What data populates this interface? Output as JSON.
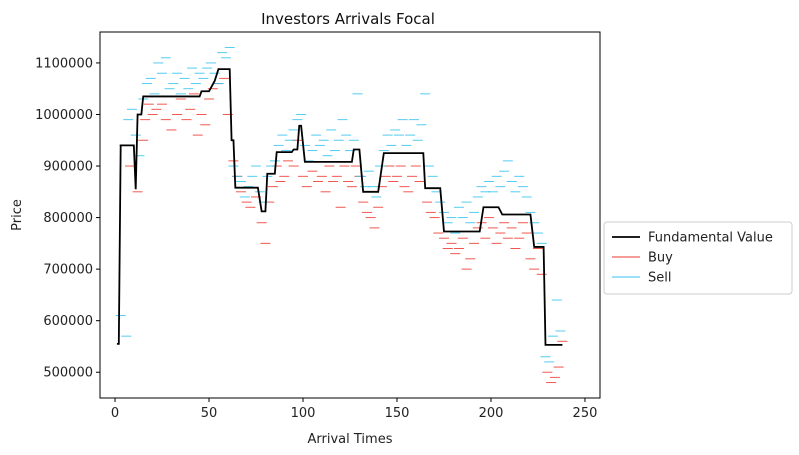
{
  "chart_data": {
    "type": "line",
    "title": "Investors Arrivals Focal",
    "xlabel": "Arrival Times",
    "ylabel": "Price",
    "xlim": [
      -8,
      258
    ],
    "ylim": [
      450000,
      1160000
    ],
    "xticks": [
      0,
      50,
      100,
      150,
      200,
      250
    ],
    "yticks": [
      500000,
      600000,
      700000,
      800000,
      900000,
      1000000,
      1100000
    ],
    "legend_position": "outside-right",
    "series": [
      {
        "name": "Fundamental Value",
        "kind": "step-line",
        "color": "#000000",
        "points": [
          [
            1,
            555000
          ],
          [
            2,
            555000
          ],
          [
            3,
            940000
          ],
          [
            10,
            940000
          ],
          [
            11,
            855000
          ],
          [
            12,
            1000000
          ],
          [
            14,
            1000000
          ],
          [
            15,
            1035000
          ],
          [
            20,
            1035000
          ],
          [
            22,
            1035000
          ],
          [
            45,
            1035000
          ],
          [
            46,
            1045000
          ],
          [
            50,
            1045000
          ],
          [
            53,
            1065000
          ],
          [
            55,
            1088000
          ],
          [
            61,
            1088000
          ],
          [
            62,
            950000
          ],
          [
            63,
            950000
          ],
          [
            64,
            858000
          ],
          [
            76,
            858000
          ],
          [
            78,
            812000
          ],
          [
            80,
            812000
          ],
          [
            81,
            885000
          ],
          [
            85,
            885000
          ],
          [
            86,
            927000
          ],
          [
            94,
            927000
          ],
          [
            95,
            932000
          ],
          [
            97,
            932000
          ],
          [
            98,
            978000
          ],
          [
            99,
            978000
          ],
          [
            101,
            908000
          ],
          [
            126,
            908000
          ],
          [
            127,
            932000
          ],
          [
            130,
            932000
          ],
          [
            132,
            850000
          ],
          [
            140,
            850000
          ],
          [
            143,
            925000
          ],
          [
            164,
            925000
          ],
          [
            165,
            857000
          ],
          [
            173,
            857000
          ],
          [
            175,
            773000
          ],
          [
            194,
            773000
          ],
          [
            196,
            820000
          ],
          [
            204,
            820000
          ],
          [
            206,
            806000
          ],
          [
            221,
            806000
          ],
          [
            223,
            743000
          ],
          [
            228,
            743000
          ],
          [
            229,
            553000
          ],
          [
            238,
            553000
          ]
        ]
      },
      {
        "name": "Buy",
        "kind": "short-dashes",
        "color": "#ee3a30",
        "points": [
          [
            5,
            940000
          ],
          [
            8,
            900000
          ],
          [
            12,
            850000
          ],
          [
            15,
            950000
          ],
          [
            16,
            990000
          ],
          [
            18,
            1020000
          ],
          [
            20,
            1000000
          ],
          [
            22,
            1010000
          ],
          [
            25,
            1020000
          ],
          [
            27,
            990000
          ],
          [
            30,
            970000
          ],
          [
            33,
            1000000
          ],
          [
            35,
            1030000
          ],
          [
            38,
            990000
          ],
          [
            40,
            1010000
          ],
          [
            42,
            1040000
          ],
          [
            44,
            960000
          ],
          [
            46,
            1000000
          ],
          [
            48,
            980000
          ],
          [
            50,
            1030000
          ],
          [
            52,
            1050000
          ],
          [
            55,
            1060000
          ],
          [
            58,
            1070000
          ],
          [
            60,
            1000000
          ],
          [
            63,
            910000
          ],
          [
            65,
            880000
          ],
          [
            67,
            850000
          ],
          [
            70,
            830000
          ],
          [
            72,
            820000
          ],
          [
            75,
            840000
          ],
          [
            78,
            790000
          ],
          [
            80,
            750000
          ],
          [
            82,
            830000
          ],
          [
            84,
            860000
          ],
          [
            86,
            900000
          ],
          [
            88,
            870000
          ],
          [
            90,
            880000
          ],
          [
            92,
            910000
          ],
          [
            95,
            900000
          ],
          [
            97,
            950000
          ],
          [
            100,
            880000
          ],
          [
            102,
            860000
          ],
          [
            105,
            890000
          ],
          [
            108,
            870000
          ],
          [
            110,
            880000
          ],
          [
            112,
            850000
          ],
          [
            114,
            900000
          ],
          [
            116,
            870000
          ],
          [
            118,
            880000
          ],
          [
            120,
            820000
          ],
          [
            122,
            900000
          ],
          [
            124,
            870000
          ],
          [
            126,
            860000
          ],
          [
            128,
            900000
          ],
          [
            130,
            880000
          ],
          [
            132,
            830000
          ],
          [
            134,
            810000
          ],
          [
            136,
            800000
          ],
          [
            138,
            780000
          ],
          [
            140,
            820000
          ],
          [
            142,
            860000
          ],
          [
            144,
            880000
          ],
          [
            146,
            900000
          ],
          [
            148,
            870000
          ],
          [
            150,
            880000
          ],
          [
            152,
            900000
          ],
          [
            154,
            860000
          ],
          [
            156,
            850000
          ],
          [
            158,
            880000
          ],
          [
            160,
            900000
          ],
          [
            162,
            870000
          ],
          [
            166,
            830000
          ],
          [
            168,
            810000
          ],
          [
            170,
            800000
          ],
          [
            172,
            770000
          ],
          [
            175,
            760000
          ],
          [
            177,
            740000
          ],
          [
            179,
            750000
          ],
          [
            181,
            730000
          ],
          [
            183,
            740000
          ],
          [
            185,
            760000
          ],
          [
            187,
            700000
          ],
          [
            189,
            720000
          ],
          [
            191,
            750000
          ],
          [
            193,
            780000
          ],
          [
            195,
            790000
          ],
          [
            197,
            760000
          ],
          [
            199,
            800000
          ],
          [
            201,
            780000
          ],
          [
            203,
            750000
          ],
          [
            205,
            770000
          ],
          [
            207,
            790000
          ],
          [
            209,
            760000
          ],
          [
            211,
            780000
          ],
          [
            213,
            740000
          ],
          [
            215,
            760000
          ],
          [
            217,
            790000
          ],
          [
            219,
            770000
          ],
          [
            221,
            720000
          ],
          [
            223,
            700000
          ],
          [
            225,
            740000
          ],
          [
            227,
            690000
          ],
          [
            230,
            500000
          ],
          [
            232,
            480000
          ],
          [
            234,
            490000
          ],
          [
            236,
            510000
          ],
          [
            238,
            560000
          ]
        ]
      },
      {
        "name": "Sell",
        "kind": "short-dashes",
        "color": "#35c3ef",
        "points": [
          [
            3,
            610000
          ],
          [
            6,
            570000
          ],
          [
            7,
            990000
          ],
          [
            9,
            1010000
          ],
          [
            11,
            960000
          ],
          [
            13,
            920000
          ],
          [
            15,
            1030000
          ],
          [
            17,
            1060000
          ],
          [
            19,
            1070000
          ],
          [
            21,
            1040000
          ],
          [
            23,
            1100000
          ],
          [
            25,
            1080000
          ],
          [
            27,
            1110000
          ],
          [
            29,
            1050000
          ],
          [
            31,
            1060000
          ],
          [
            33,
            1080000
          ],
          [
            35,
            1040000
          ],
          [
            37,
            1070000
          ],
          [
            39,
            1050000
          ],
          [
            41,
            1090000
          ],
          [
            43,
            1060000
          ],
          [
            45,
            1080000
          ],
          [
            47,
            1070000
          ],
          [
            49,
            1090000
          ],
          [
            51,
            1100000
          ],
          [
            53,
            1080000
          ],
          [
            55,
            1060000
          ],
          [
            57,
            1120000
          ],
          [
            59,
            1110000
          ],
          [
            61,
            1130000
          ],
          [
            63,
            900000
          ],
          [
            65,
            880000
          ],
          [
            67,
            870000
          ],
          [
            69,
            840000
          ],
          [
            71,
            860000
          ],
          [
            73,
            880000
          ],
          [
            75,
            900000
          ],
          [
            77,
            850000
          ],
          [
            79,
            830000
          ],
          [
            81,
            880000
          ],
          [
            83,
            900000
          ],
          [
            85,
            910000
          ],
          [
            87,
            940000
          ],
          [
            89,
            960000
          ],
          [
            91,
            930000
          ],
          [
            93,
            950000
          ],
          [
            95,
            970000
          ],
          [
            97,
            990000
          ],
          [
            99,
            1000000
          ],
          [
            101,
            940000
          ],
          [
            103,
            910000
          ],
          [
            105,
            930000
          ],
          [
            107,
            960000
          ],
          [
            109,
            940000
          ],
          [
            111,
            950000
          ],
          [
            113,
            920000
          ],
          [
            115,
            970000
          ],
          [
            117,
            930000
          ],
          [
            119,
            950000
          ],
          [
            121,
            990000
          ],
          [
            123,
            960000
          ],
          [
            125,
            930000
          ],
          [
            127,
            950000
          ],
          [
            129,
            1040000
          ],
          [
            131,
            880000
          ],
          [
            133,
            860000
          ],
          [
            135,
            890000
          ],
          [
            137,
            860000
          ],
          [
            139,
            840000
          ],
          [
            141,
            900000
          ],
          [
            143,
            930000
          ],
          [
            145,
            960000
          ],
          [
            147,
            940000
          ],
          [
            149,
            970000
          ],
          [
            151,
            960000
          ],
          [
            153,
            990000
          ],
          [
            155,
            940000
          ],
          [
            157,
            960000
          ],
          [
            159,
            990000
          ],
          [
            161,
            950000
          ],
          [
            163,
            980000
          ],
          [
            165,
            1040000
          ],
          [
            167,
            900000
          ],
          [
            169,
            880000
          ],
          [
            171,
            850000
          ],
          [
            173,
            830000
          ],
          [
            175,
            810000
          ],
          [
            177,
            790000
          ],
          [
            179,
            800000
          ],
          [
            181,
            770000
          ],
          [
            183,
            820000
          ],
          [
            185,
            800000
          ],
          [
            187,
            830000
          ],
          [
            189,
            790000
          ],
          [
            191,
            810000
          ],
          [
            193,
            840000
          ],
          [
            195,
            860000
          ],
          [
            197,
            850000
          ],
          [
            199,
            870000
          ],
          [
            201,
            850000
          ],
          [
            203,
            880000
          ],
          [
            205,
            860000
          ],
          [
            207,
            890000
          ],
          [
            209,
            910000
          ],
          [
            211,
            870000
          ],
          [
            213,
            850000
          ],
          [
            215,
            880000
          ],
          [
            217,
            860000
          ],
          [
            219,
            840000
          ],
          [
            221,
            810000
          ],
          [
            223,
            790000
          ],
          [
            225,
            770000
          ],
          [
            227,
            750000
          ],
          [
            229,
            530000
          ],
          [
            231,
            520000
          ],
          [
            233,
            570000
          ],
          [
            235,
            640000
          ],
          [
            237,
            580000
          ]
        ]
      }
    ]
  }
}
